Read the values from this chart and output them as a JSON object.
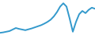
{
  "x": [
    0,
    1,
    2,
    3,
    4,
    5,
    6,
    7,
    8,
    9,
    10,
    11,
    12,
    13,
    14,
    15,
    16,
    17,
    18,
    19,
    20,
    21,
    22,
    23,
    24,
    25,
    26,
    27,
    28,
    29,
    30
  ],
  "y": [
    1.0,
    1.2,
    1.5,
    1.8,
    2.5,
    3.2,
    2.8,
    2.5,
    2.2,
    2.6,
    3.0,
    3.5,
    4.0,
    4.5,
    5.2,
    6.0,
    7.0,
    8.5,
    10.5,
    13.0,
    14.5,
    13.0,
    7.5,
    1.5,
    6.0,
    9.5,
    11.0,
    10.0,
    11.5,
    12.5,
    12.0
  ],
  "line_color": "#3399cc",
  "line_width": 1.4,
  "background_color": "#ffffff",
  "ylim": [
    0,
    16
  ],
  "xlim": [
    0,
    30
  ]
}
